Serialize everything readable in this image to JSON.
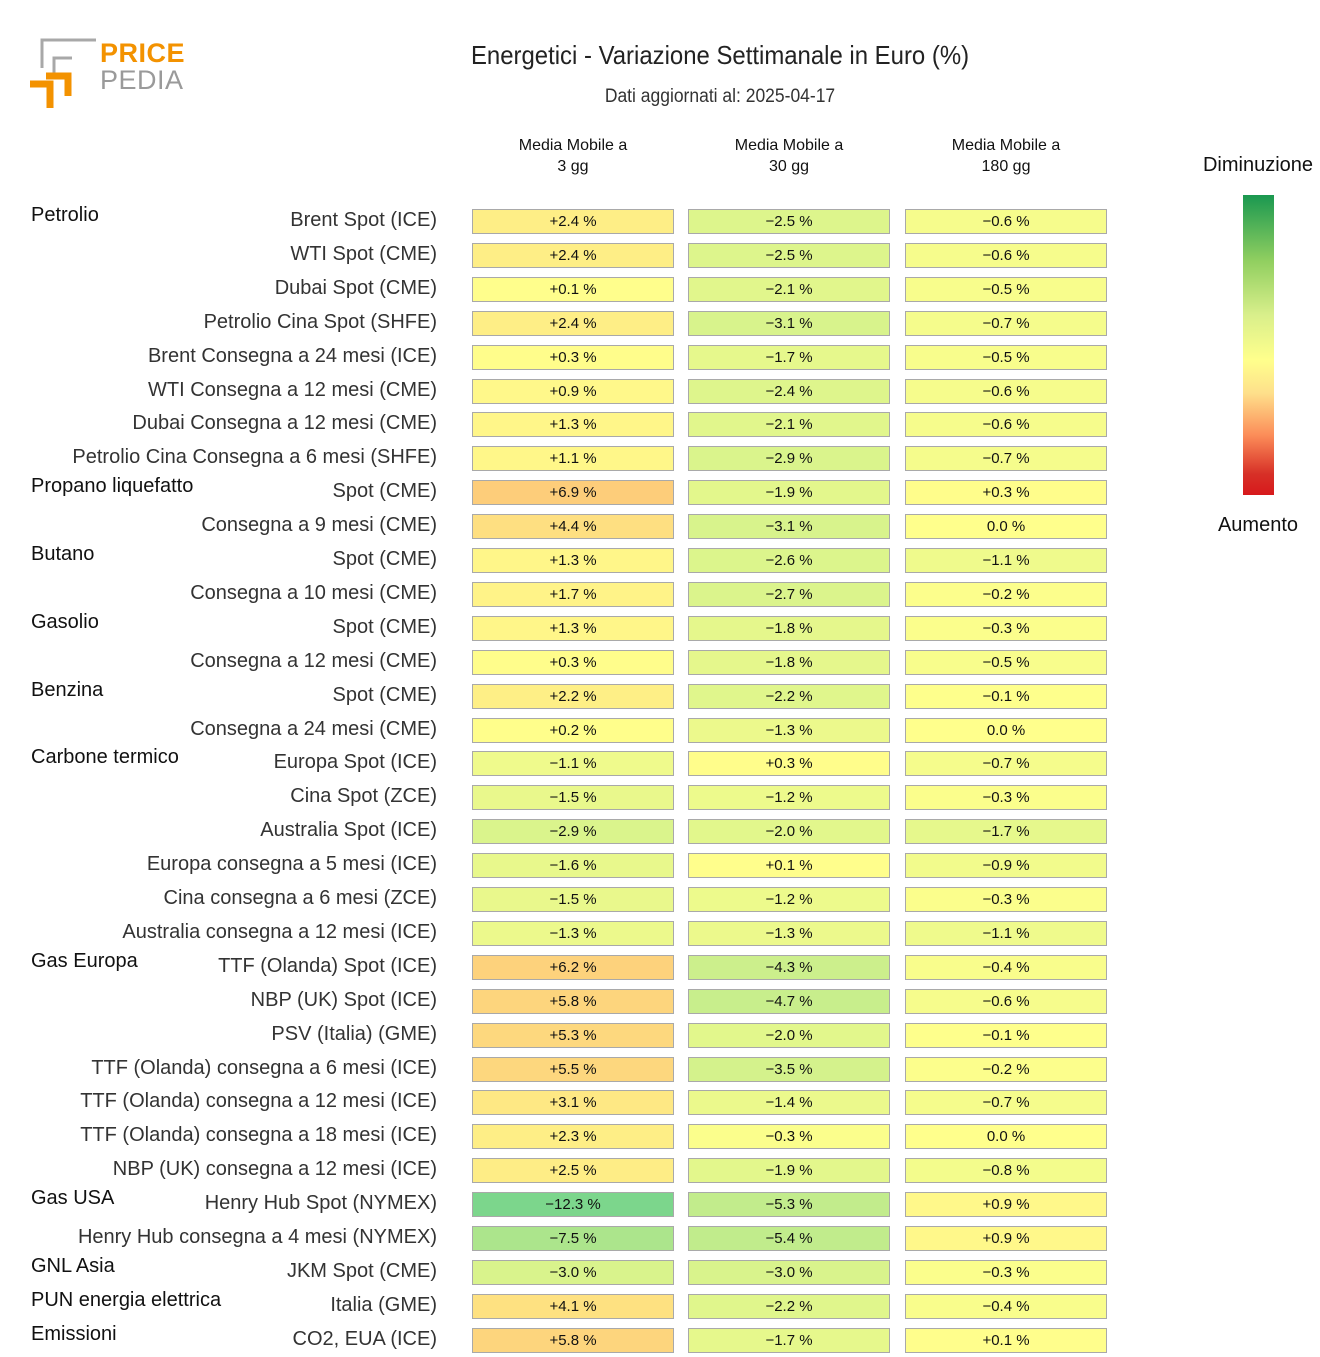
{
  "brand": {
    "top": "PRICE",
    "bottom": "PEDIA"
  },
  "chart_data": {
    "type": "table",
    "title": "Energetici - Variazione Settimanale in Euro (%)",
    "subtitle": "Dati aggiornati al: 2025-04-17",
    "columns": [
      "Media Mobile a\n3 gg",
      "Media Mobile a\n30 gg",
      "Media Mobile a\n180 gg"
    ],
    "legend": {
      "top": "Diminuzione",
      "bottom": "Aumento"
    },
    "rows": [
      {
        "group": "Petrolio",
        "label": "Brent Spot (ICE)",
        "values": [
          2.4,
          -2.5,
          -0.6
        ]
      },
      {
        "group": "",
        "label": "WTI Spot (CME)",
        "values": [
          2.4,
          -2.5,
          -0.6
        ]
      },
      {
        "group": "",
        "label": "Dubai Spot (CME)",
        "values": [
          0.1,
          -2.1,
          -0.5
        ]
      },
      {
        "group": "",
        "label": "Petrolio Cina Spot (SHFE)",
        "values": [
          2.4,
          -3.1,
          -0.7
        ]
      },
      {
        "group": "",
        "label": "Brent Consegna a 24 mesi (ICE)",
        "values": [
          0.3,
          -1.7,
          -0.5
        ]
      },
      {
        "group": "",
        "label": "WTI Consegna a 12 mesi (CME)",
        "values": [
          0.9,
          -2.4,
          -0.6
        ]
      },
      {
        "group": "",
        "label": "Dubai Consegna a 12 mesi (CME)",
        "values": [
          1.3,
          -2.1,
          -0.6
        ]
      },
      {
        "group": "",
        "label": "Petrolio Cina Consegna a 6 mesi (SHFE)",
        "values": [
          1.1,
          -2.9,
          -0.7
        ]
      },
      {
        "group": "Propano liquefatto",
        "label": "Spot (CME)",
        "values": [
          6.9,
          -1.9,
          0.3
        ]
      },
      {
        "group": "",
        "label": "Consegna a 9 mesi (CME)",
        "values": [
          4.4,
          -3.1,
          0.0
        ]
      },
      {
        "group": "Butano",
        "label": "Spot (CME)",
        "values": [
          1.3,
          -2.6,
          -1.1
        ]
      },
      {
        "group": "",
        "label": "Consegna a 10 mesi (CME)",
        "values": [
          1.7,
          -2.7,
          -0.2
        ]
      },
      {
        "group": "Gasolio",
        "label": "Spot (CME)",
        "values": [
          1.3,
          -1.8,
          -0.3
        ]
      },
      {
        "group": "",
        "label": "Consegna a 12 mesi (CME)",
        "values": [
          0.3,
          -1.8,
          -0.5
        ]
      },
      {
        "group": "Benzina",
        "label": "Spot (CME)",
        "values": [
          2.2,
          -2.2,
          -0.1
        ]
      },
      {
        "group": "",
        "label": "Consegna a 24 mesi (CME)",
        "values": [
          0.2,
          -1.3,
          0.0
        ]
      },
      {
        "group": "Carbone termico",
        "label": "Europa Spot (ICE)",
        "values": [
          -1.1,
          0.3,
          -0.7
        ]
      },
      {
        "group": "",
        "label": "Cina Spot (ZCE)",
        "values": [
          -1.5,
          -1.2,
          -0.3
        ]
      },
      {
        "group": "",
        "label": "Australia Spot (ICE)",
        "values": [
          -2.9,
          -2.0,
          -1.7
        ]
      },
      {
        "group": "",
        "label": "Europa consegna a 5 mesi (ICE)",
        "values": [
          -1.6,
          0.1,
          -0.9
        ]
      },
      {
        "group": "",
        "label": "Cina consegna a 6 mesi (ZCE)",
        "values": [
          -1.5,
          -1.2,
          -0.3
        ]
      },
      {
        "group": "",
        "label": "Australia consegna a 12 mesi (ICE)",
        "values": [
          -1.3,
          -1.3,
          -1.1
        ]
      },
      {
        "group": "Gas Europa",
        "label": "TTF (Olanda) Spot (ICE)",
        "values": [
          6.2,
          -4.3,
          -0.4
        ]
      },
      {
        "group": "",
        "label": "NBP (UK) Spot (ICE)",
        "values": [
          5.8,
          -4.7,
          -0.6
        ]
      },
      {
        "group": "",
        "label": "PSV (Italia) (GME)",
        "values": [
          5.3,
          -2.0,
          -0.1
        ]
      },
      {
        "group": "",
        "label": "TTF (Olanda) consegna a 6 mesi (ICE)",
        "values": [
          5.5,
          -3.5,
          -0.2
        ]
      },
      {
        "group": "",
        "label": "TTF (Olanda) consegna a 12 mesi (ICE)",
        "values": [
          3.1,
          -1.4,
          -0.7
        ]
      },
      {
        "group": "",
        "label": "TTF (Olanda) consegna a 18 mesi (ICE)",
        "values": [
          2.3,
          -0.3,
          0.0
        ]
      },
      {
        "group": "",
        "label": "NBP (UK) consegna a 12 mesi (ICE)",
        "values": [
          2.5,
          -1.9,
          -0.8
        ]
      },
      {
        "group": "Gas USA",
        "label": "Henry Hub Spot (NYMEX)",
        "values": [
          -12.3,
          -5.3,
          0.9
        ]
      },
      {
        "group": "",
        "label": "Henry Hub consegna a 4 mesi (NYMEX)",
        "values": [
          -7.5,
          -5.4,
          0.9
        ]
      },
      {
        "group": "GNL Asia",
        "label": "JKM Spot (CME)",
        "values": [
          -3.0,
          -3.0,
          -0.3
        ]
      },
      {
        "group": "PUN energia elettrica",
        "label": "Italia (GME)",
        "values": [
          4.1,
          -2.2,
          -0.4
        ]
      },
      {
        "group": "Emissioni",
        "label": "CO2, EUA (ICE)",
        "values": [
          5.8,
          -1.7,
          0.1
        ]
      }
    ]
  }
}
